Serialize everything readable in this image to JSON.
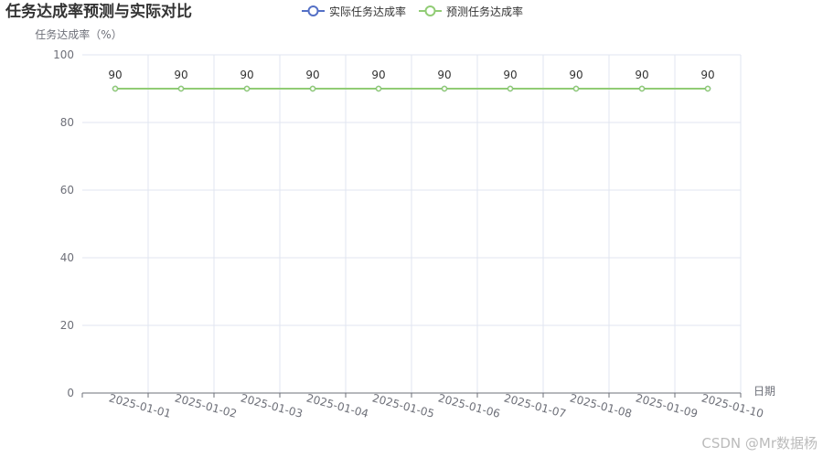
{
  "chart_data": {
    "type": "line",
    "title": "任务达成率预测与实际对比",
    "ylabel": "任务达成率（%）",
    "xlabel": "日期",
    "ylim": [
      0,
      100
    ],
    "yticks": [
      0,
      20,
      40,
      60,
      80,
      100
    ],
    "categories": [
      "2025-01-01",
      "2025-01-02",
      "2025-01-03",
      "2025-01-04",
      "2025-01-05",
      "2025-01-06",
      "2025-01-07",
      "2025-01-08",
      "2025-01-09",
      "2025-01-10"
    ],
    "series": [
      {
        "name": "实际任务达成率",
        "color": "#5470c6",
        "values": [
          90,
          90,
          90,
          90,
          90,
          90,
          90,
          90,
          90,
          90
        ],
        "show_labels": false
      },
      {
        "name": "预测任务达成率",
        "color": "#91cc75",
        "values": [
          90,
          90,
          90,
          90,
          90,
          90,
          90,
          90,
          90,
          90
        ],
        "show_labels": true
      }
    ],
    "grid": true,
    "legend_position": "top-center"
  },
  "watermark": "CSDN @Mr数据杨"
}
